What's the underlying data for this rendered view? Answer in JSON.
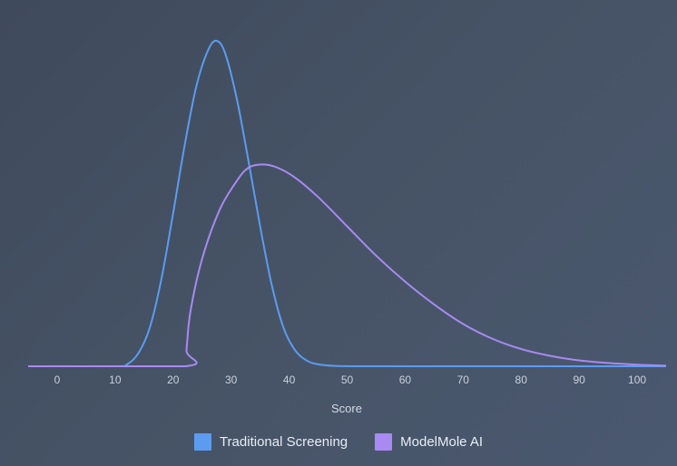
{
  "chart_data": {
    "type": "line",
    "xlabel": "Score",
    "ylabel": "",
    "x_ticks": [
      0,
      10,
      20,
      30,
      40,
      50,
      60,
      70,
      80,
      90,
      100
    ],
    "xlim": [
      -5,
      105
    ],
    "ylim": [
      0,
      1
    ],
    "grid": false,
    "legend_position": "bottom",
    "series": [
      {
        "name": "Traditional Screening",
        "color": "#5b9cf0",
        "x": [
          -5,
          10,
          12,
          14,
          16,
          18,
          20,
          22,
          24,
          26,
          27.5,
          29,
          31,
          33,
          35,
          37,
          39,
          41,
          43,
          45,
          48,
          52,
          60,
          80,
          105
        ],
        "y": [
          0,
          0,
          0.005,
          0.04,
          0.12,
          0.27,
          0.47,
          0.68,
          0.86,
          0.97,
          1.0,
          0.96,
          0.82,
          0.63,
          0.43,
          0.25,
          0.12,
          0.05,
          0.018,
          0.006,
          0.001,
          0,
          0,
          0,
          0
        ]
      },
      {
        "name": "ModelMole AI",
        "color": "#a88af2",
        "x": [
          -5,
          22,
          22.3,
          23,
          25,
          28,
          31,
          33,
          35.5,
          38,
          41,
          45,
          50,
          55,
          60,
          65,
          70,
          75,
          80,
          85,
          90,
          95,
          100,
          105
        ],
        "y": [
          0,
          0,
          0.05,
          0.17,
          0.33,
          0.48,
          0.57,
          0.61,
          0.62,
          0.61,
          0.58,
          0.52,
          0.43,
          0.34,
          0.26,
          0.19,
          0.13,
          0.085,
          0.053,
          0.032,
          0.018,
          0.01,
          0.005,
          0.002
        ]
      }
    ]
  }
}
